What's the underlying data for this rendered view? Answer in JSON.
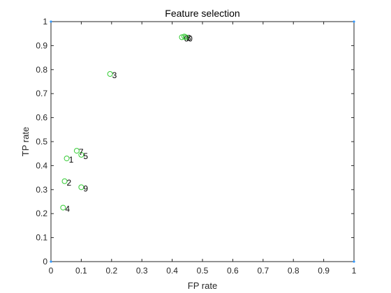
{
  "chart_data": {
    "type": "scatter",
    "title": "Feature selection",
    "xlabel": "FP rate",
    "ylabel": "TP rate",
    "xlim": [
      0,
      1
    ],
    "ylim": [
      0,
      1
    ],
    "x_ticks": [
      0,
      0.1,
      0.2,
      0.3,
      0.4,
      0.5,
      0.6,
      0.7,
      0.8,
      0.9,
      1
    ],
    "y_ticks": [
      0,
      0.1,
      0.2,
      0.3,
      0.4,
      0.5,
      0.6,
      0.7,
      0.8,
      0.9,
      1
    ],
    "x_tick_labels": [
      "0",
      "0.1",
      "0.2",
      "0.3",
      "0.4",
      "0.5",
      "0.6",
      "0.7",
      "0.8",
      "0.9",
      "1"
    ],
    "y_tick_labels": [
      "0",
      "0.1",
      "0.2",
      "0.3",
      "0.4",
      "0.5",
      "0.6",
      "0.7",
      "0.8",
      "0.9",
      "1"
    ],
    "grid": false,
    "marker_color": "#33cc33",
    "corner_marker_color": "#3399ff",
    "points": [
      {
        "label": "1",
        "x": 0.052,
        "y": 0.43
      },
      {
        "label": "2",
        "x": 0.045,
        "y": 0.335
      },
      {
        "label": "3",
        "x": 0.195,
        "y": 0.782
      },
      {
        "label": "4",
        "x": 0.04,
        "y": 0.225
      },
      {
        "label": "5",
        "x": 0.1,
        "y": 0.445
      },
      {
        "label": "6",
        "x": 0.432,
        "y": 0.935
      },
      {
        "label": "7",
        "x": 0.085,
        "y": 0.462
      },
      {
        "label": "8",
        "x": 0.44,
        "y": 0.938
      },
      {
        "label": "9",
        "x": 0.1,
        "y": 0.31
      },
      {
        "label": "0",
        "x": 0.445,
        "y": 0.935
      }
    ],
    "corner_points": [
      {
        "x": 0,
        "y": 0
      },
      {
        "x": 0,
        "y": 1
      },
      {
        "x": 1,
        "y": 0
      },
      {
        "x": 1,
        "y": 1
      }
    ]
  }
}
